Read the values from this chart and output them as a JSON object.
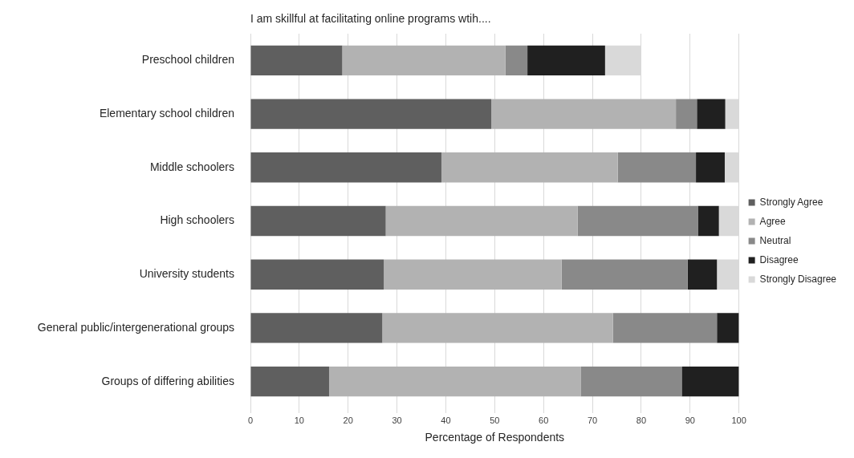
{
  "chart_data": {
    "type": "bar",
    "orientation": "horizontal",
    "stacked": true,
    "title": "I am skillful at facilitating online programs wtih....",
    "xlabel": "Percentage of Respondents",
    "categories": [
      "Preschool children",
      "Elementary school children",
      "Middle schoolers",
      "High schoolers",
      "University students",
      "General public/intergenerational groups",
      "Groups of differing abilities"
    ],
    "series": [
      {
        "name": "Strongly Agree",
        "color": "#5f5f5f",
        "values": [
          18.8,
          49.3,
          39.1,
          27.7,
          27.3,
          27.0,
          16.1
        ]
      },
      {
        "name": "Agree",
        "color": "#b2b2b2",
        "values": [
          33.4,
          37.8,
          36.1,
          39.3,
          36.4,
          47.2,
          51.5
        ]
      },
      {
        "name": "Neutral",
        "color": "#898989",
        "values": [
          4.5,
          4.3,
          16.0,
          24.6,
          25.8,
          21.3,
          20.7
        ]
      },
      {
        "name": "Disagree",
        "color": "#202020",
        "values": [
          15.9,
          5.8,
          5.9,
          4.3,
          6.0,
          4.5,
          11.7
        ]
      },
      {
        "name": "Strongly Disagree",
        "color": "#d9d9d9",
        "values": [
          7.3,
          2.8,
          2.9,
          4.1,
          4.5,
          null,
          null
        ]
      }
    ],
    "xlim": [
      0,
      100
    ],
    "xticks": [
      0,
      10,
      20,
      30,
      40,
      50,
      60,
      70,
      80,
      90,
      100
    ],
    "grid": "x",
    "legend": "right"
  }
}
